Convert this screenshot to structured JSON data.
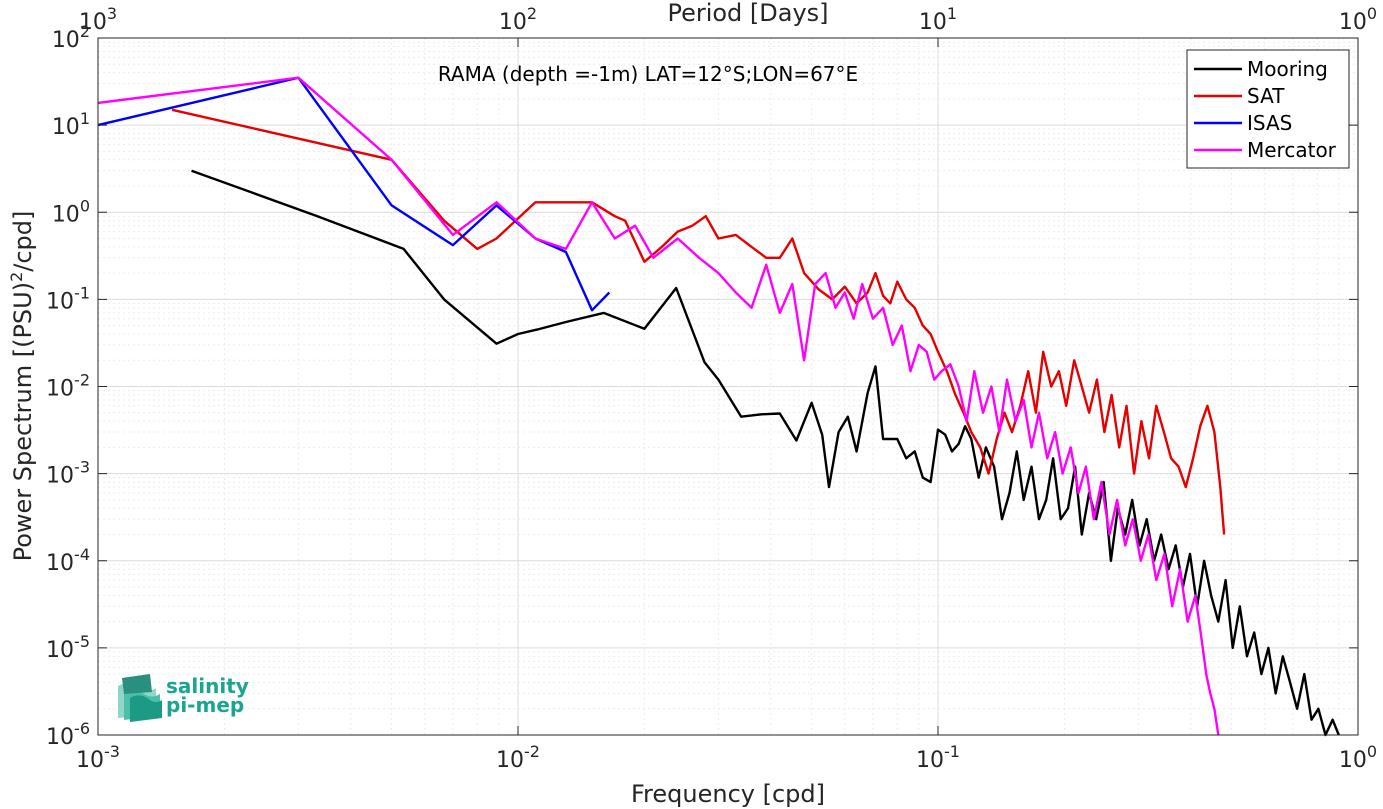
{
  "chart_data": {
    "type": "line",
    "title": "",
    "annotation": "RAMA (depth =-1m) LAT=12°S;LON=67°E",
    "xlabel": "Frequency [cpd]",
    "ylabel": "Power Spectrum [(PSU)",
    "ylabel_sup": "2",
    "ylabel_tail": "/cpd]",
    "x2label": "Period [Days]",
    "xscale": "log",
    "yscale": "log",
    "xlim": [
      0.001,
      1
    ],
    "ylim": [
      1e-06,
      100
    ],
    "grid": true,
    "legend_position": "top-right",
    "x_ticks": [
      {
        "value": 0.001,
        "base": "10",
        "exp": "-3"
      },
      {
        "value": 0.01,
        "base": "10",
        "exp": "-2"
      },
      {
        "value": 0.1,
        "base": "10",
        "exp": "-1"
      },
      {
        "value": 1,
        "base": "10",
        "exp": "0"
      }
    ],
    "x2_ticks": [
      {
        "value": 0.001,
        "base": "10",
        "exp": "3"
      },
      {
        "value": 0.01,
        "base": "10",
        "exp": "2"
      },
      {
        "value": 0.1,
        "base": "10",
        "exp": "1"
      },
      {
        "value": 1,
        "base": "10",
        "exp": "0"
      }
    ],
    "y_ticks": [
      {
        "value": 1e-06,
        "base": "10",
        "exp": "-6"
      },
      {
        "value": 1e-05,
        "base": "10",
        "exp": "-5"
      },
      {
        "value": 0.0001,
        "base": "10",
        "exp": "-4"
      },
      {
        "value": 0.001,
        "base": "10",
        "exp": "-3"
      },
      {
        "value": 0.01,
        "base": "10",
        "exp": "-2"
      },
      {
        "value": 0.1,
        "base": "10",
        "exp": "-1"
      },
      {
        "value": 1,
        "base": "10",
        "exp": "0"
      },
      {
        "value": 10,
        "base": "10",
        "exp": "1"
      },
      {
        "value": 100,
        "base": "10",
        "exp": "2"
      }
    ],
    "series": [
      {
        "name": "Mooring",
        "color": "#000000",
        "x": [
          0.00167,
          0.00333,
          0.00534,
          0.00667,
          0.00889,
          0.01,
          0.0111,
          0.013,
          0.016,
          0.02,
          0.0238,
          0.0278,
          0.03,
          0.034,
          0.038,
          0.042,
          0.046,
          0.05,
          0.053,
          0.055,
          0.058,
          0.061,
          0.064,
          0.068,
          0.071,
          0.074,
          0.077,
          0.08,
          0.084,
          0.088,
          0.092,
          0.096,
          0.1,
          0.104,
          0.108,
          0.112,
          0.116,
          0.12,
          0.125,
          0.13,
          0.136,
          0.142,
          0.148,
          0.154,
          0.16,
          0.167,
          0.174,
          0.181,
          0.188,
          0.196,
          0.204,
          0.212,
          0.22,
          0.229,
          0.238,
          0.248,
          0.258,
          0.268,
          0.279,
          0.29,
          0.302,
          0.314,
          0.327,
          0.34,
          0.354,
          0.368,
          0.383,
          0.398,
          0.414,
          0.43,
          0.447,
          0.465,
          0.484,
          0.503,
          0.523,
          0.544,
          0.566,
          0.589,
          0.612,
          0.637,
          0.662,
          0.689,
          0.716,
          0.745,
          0.775,
          0.805,
          0.837,
          0.87,
          0.9
        ],
        "y": [
          3.0,
          0.9,
          0.38,
          0.1,
          0.031,
          0.04,
          0.045,
          0.055,
          0.07,
          0.046,
          0.135,
          0.019,
          0.012,
          0.0045,
          0.0048,
          0.0049,
          0.0024,
          0.0065,
          0.0028,
          0.0007,
          0.003,
          0.0045,
          0.0018,
          0.0085,
          0.017,
          0.0025,
          0.0025,
          0.0025,
          0.0015,
          0.0018,
          0.0009,
          0.0008,
          0.0032,
          0.0028,
          0.0018,
          0.0022,
          0.0035,
          0.0025,
          0.0009,
          0.002,
          0.0012,
          0.0003,
          0.0006,
          0.0018,
          0.0005,
          0.0012,
          0.0003,
          0.0005,
          0.0015,
          0.0003,
          0.0004,
          0.0012,
          0.0002,
          0.0006,
          0.0003,
          0.0008,
          0.0001,
          0.0004,
          0.0002,
          0.0005,
          0.00015,
          0.0003,
          0.0001,
          0.0002,
          8e-05,
          0.00015,
          5e-05,
          0.00012,
          3e-05,
          0.0001,
          4e-05,
          2e-05,
          6e-05,
          1e-05,
          3e-05,
          8e-06,
          1.5e-05,
          5e-06,
          1e-05,
          3e-06,
          8e-06,
          4e-06,
          2e-06,
          5e-06,
          1.5e-06,
          2e-06,
          1e-06,
          1.5e-06,
          1e-06
        ]
      },
      {
        "name": "SAT",
        "color": "#e60000",
        "x": [
          0.0015,
          0.005,
          0.00667,
          0.008,
          0.00889,
          0.011,
          0.013,
          0.015,
          0.017,
          0.018,
          0.02,
          0.022,
          0.024,
          0.026,
          0.028,
          0.03,
          0.033,
          0.036,
          0.039,
          0.042,
          0.045,
          0.048,
          0.052,
          0.056,
          0.06,
          0.064,
          0.068,
          0.071,
          0.074,
          0.077,
          0.08,
          0.084,
          0.088,
          0.092,
          0.096,
          0.1,
          0.105,
          0.11,
          0.115,
          0.12,
          0.126,
          0.132,
          0.138,
          0.144,
          0.15,
          0.157,
          0.164,
          0.171,
          0.178,
          0.186,
          0.194,
          0.202,
          0.211,
          0.22,
          0.229,
          0.239,
          0.249,
          0.259,
          0.27,
          0.281,
          0.293,
          0.305,
          0.318,
          0.331,
          0.345,
          0.359,
          0.374,
          0.389,
          0.405,
          0.421,
          0.438,
          0.455,
          0.47,
          0.48
        ],
        "y": [
          15.0,
          4.0,
          0.8,
          0.38,
          0.5,
          1.3,
          1.3,
          1.3,
          0.9,
          0.8,
          0.27,
          0.4,
          0.6,
          0.7,
          0.9,
          0.5,
          0.55,
          0.4,
          0.3,
          0.3,
          0.5,
          0.2,
          0.13,
          0.1,
          0.14,
          0.09,
          0.12,
          0.2,
          0.11,
          0.09,
          0.16,
          0.1,
          0.08,
          0.05,
          0.04,
          0.025,
          0.015,
          0.008,
          0.005,
          0.003,
          0.002,
          0.001,
          0.0025,
          0.005,
          0.003,
          0.006,
          0.015,
          0.005,
          0.025,
          0.01,
          0.015,
          0.006,
          0.02,
          0.01,
          0.005,
          0.012,
          0.003,
          0.008,
          0.002,
          0.006,
          0.001,
          0.004,
          0.0015,
          0.006,
          0.003,
          0.0015,
          0.0012,
          0.0007,
          0.0015,
          0.0035,
          0.006,
          0.003,
          0.0007,
          0.0002
        ]
      },
      {
        "name": "ISAS",
        "color": "#0000ff",
        "x": [
          0.001,
          0.003,
          0.005,
          0.007,
          0.00889,
          0.011,
          0.013,
          0.015,
          0.0165
        ],
        "y": [
          10.0,
          35.0,
          1.2,
          0.42,
          1.2,
          0.5,
          0.35,
          0.075,
          0.12
        ]
      },
      {
        "name": "Mercator",
        "color": "#ff00ff",
        "x": [
          0.001,
          0.003,
          0.005,
          0.007,
          0.00889,
          0.011,
          0.013,
          0.015,
          0.017,
          0.019,
          0.021,
          0.024,
          0.027,
          0.03,
          0.033,
          0.036,
          0.039,
          0.042,
          0.045,
          0.048,
          0.051,
          0.054,
          0.057,
          0.06,
          0.063,
          0.066,
          0.07,
          0.074,
          0.078,
          0.082,
          0.086,
          0.09,
          0.094,
          0.098,
          0.102,
          0.107,
          0.112,
          0.117,
          0.122,
          0.128,
          0.134,
          0.14,
          0.146,
          0.153,
          0.16,
          0.167,
          0.174,
          0.182,
          0.19,
          0.198,
          0.207,
          0.216,
          0.225,
          0.235,
          0.245,
          0.256,
          0.267,
          0.279,
          0.291,
          0.304,
          0.317,
          0.331,
          0.346,
          0.361,
          0.377,
          0.393,
          0.41,
          0.427,
          0.435,
          0.445,
          0.455,
          0.465
        ],
        "y": [
          18.0,
          35.0,
          4.0,
          0.55,
          1.3,
          0.5,
          0.38,
          1.3,
          0.5,
          0.7,
          0.3,
          0.5,
          0.3,
          0.2,
          0.12,
          0.08,
          0.25,
          0.07,
          0.15,
          0.02,
          0.15,
          0.2,
          0.08,
          0.12,
          0.06,
          0.15,
          0.06,
          0.08,
          0.03,
          0.05,
          0.015,
          0.03,
          0.025,
          0.012,
          0.015,
          0.018,
          0.01,
          0.004,
          0.015,
          0.005,
          0.01,
          0.003,
          0.012,
          0.004,
          0.007,
          0.002,
          0.005,
          0.0015,
          0.003,
          0.001,
          0.002,
          0.0006,
          0.0012,
          0.0003,
          0.0008,
          0.0002,
          0.0005,
          0.00015,
          0.0003,
          0.0001,
          0.0002,
          6e-05,
          0.00012,
          3e-05,
          8e-05,
          2e-05,
          4e-05,
          1e-05,
          5e-06,
          3e-06,
          2e-06,
          1e-06
        ]
      }
    ]
  },
  "logo": {
    "line1": "salinity",
    "line2": "pi-mep"
  }
}
